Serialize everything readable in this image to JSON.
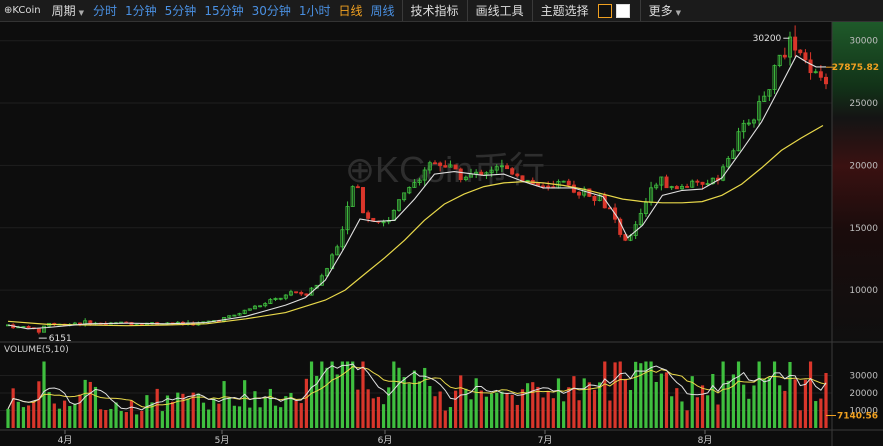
{
  "toolbar": {
    "logo": "⊕KCoin",
    "period_label": "周期",
    "timeframes": [
      {
        "label": "分时",
        "active": false
      },
      {
        "label": "1分钟",
        "active": false
      },
      {
        "label": "5分钟",
        "active": false
      },
      {
        "label": "15分钟",
        "active": false
      },
      {
        "label": "30分钟",
        "active": false
      },
      {
        "label": "1小时",
        "active": false
      },
      {
        "label": "日线",
        "active": true
      },
      {
        "label": "周线",
        "active": false
      }
    ],
    "indicators_label": "技术指标",
    "drawing_tools_label": "画线工具",
    "theme_label": "主题选择",
    "more_label": "更多"
  },
  "watermark": "⊕KCoin币行",
  "colors": {
    "up": "#3fbf3f",
    "down": "#d9362b",
    "ma_short": "#e0e0e0",
    "ma_long": "#e8d84a",
    "accent": "#f0a020",
    "link": "#4a90e2"
  },
  "chart_data": {
    "type": "candlestick",
    "months": [
      "4月",
      "5月",
      "6月",
      "7月",
      "8月"
    ],
    "y_ticks": [
      10000,
      15000,
      20000,
      25000,
      30000
    ],
    "ylim": [
      6000,
      31500
    ],
    "price_ranges": [
      [
        0,
        7200
      ],
      [
        10,
        7000
      ],
      [
        20,
        7100
      ],
      [
        30,
        6600
      ],
      [
        40,
        7400
      ],
      [
        50,
        7200
      ],
      [
        60,
        7300
      ],
      [
        70,
        7400
      ],
      [
        80,
        7350
      ],
      [
        90,
        7300
      ],
      [
        100,
        7300
      ],
      [
        110,
        7350
      ],
      [
        120,
        7400
      ],
      [
        130,
        7300
      ],
      [
        140,
        7350
      ],
      [
        150,
        7300
      ],
      [
        160,
        7400
      ],
      [
        170,
        7300
      ],
      [
        180,
        7350
      ],
      [
        190,
        7300
      ],
      [
        200,
        7400
      ],
      [
        210,
        7600
      ],
      [
        220,
        7800
      ],
      [
        230,
        8000
      ],
      [
        240,
        8400
      ],
      [
        250,
        8700
      ],
      [
        260,
        8900
      ],
      [
        270,
        9300
      ],
      [
        280,
        9500
      ],
      [
        290,
        9800
      ],
      [
        300,
        9600
      ],
      [
        310,
        10300
      ],
      [
        320,
        11500
      ],
      [
        330,
        13300
      ],
      [
        340,
        15300
      ],
      [
        350,
        19300
      ],
      [
        355,
        17000
      ],
      [
        360,
        15800
      ],
      [
        370,
        15600
      ],
      [
        380,
        15300
      ],
      [
        390,
        16500
      ],
      [
        400,
        18000
      ],
      [
        410,
        18500
      ],
      [
        420,
        19700
      ],
      [
        430,
        20500
      ],
      [
        440,
        20000
      ],
      [
        450,
        19500
      ],
      [
        460,
        19000
      ],
      [
        470,
        19200
      ],
      [
        480,
        19500
      ],
      [
        490,
        19800
      ],
      [
        500,
        19700
      ],
      [
        510,
        19500
      ],
      [
        520,
        19000
      ],
      [
        530,
        18500
      ],
      [
        540,
        18200
      ],
      [
        550,
        18000
      ],
      [
        560,
        18400
      ],
      [
        570,
        18200
      ],
      [
        580,
        17900
      ],
      [
        590,
        17600
      ],
      [
        600,
        17200
      ],
      [
        610,
        16000
      ],
      [
        620,
        13700
      ],
      [
        630,
        14500
      ],
      [
        640,
        16500
      ],
      [
        650,
        18600
      ],
      [
        660,
        18700
      ],
      [
        670,
        18000
      ],
      [
        680,
        18300
      ],
      [
        690,
        18500
      ],
      [
        700,
        18300
      ],
      [
        710,
        19000
      ],
      [
        720,
        19600
      ],
      [
        730,
        21000
      ],
      [
        740,
        22800
      ],
      [
        750,
        23700
      ],
      [
        760,
        25000
      ],
      [
        770,
        27000
      ],
      [
        780,
        29200
      ],
      [
        790,
        29800
      ],
      [
        800,
        28700
      ],
      [
        810,
        27700
      ],
      [
        820,
        27000
      ]
    ],
    "ma_short": [
      [
        0,
        7200
      ],
      [
        20,
        6900
      ],
      [
        40,
        7000
      ],
      [
        80,
        7300
      ],
      [
        120,
        7350
      ],
      [
        160,
        7300
      ],
      [
        200,
        7400
      ],
      [
        240,
        7900
      ],
      [
        280,
        8800
      ],
      [
        300,
        9400
      ],
      [
        320,
        10800
      ],
      [
        340,
        13500
      ],
      [
        355,
        15700
      ],
      [
        370,
        15500
      ],
      [
        390,
        15600
      ],
      [
        410,
        17300
      ],
      [
        430,
        19300
      ],
      [
        450,
        19500
      ],
      [
        480,
        19200
      ],
      [
        500,
        19300
      ],
      [
        520,
        18700
      ],
      [
        540,
        18200
      ],
      [
        570,
        18200
      ],
      [
        600,
        17500
      ],
      [
        615,
        15800
      ],
      [
        625,
        14200
      ],
      [
        640,
        15200
      ],
      [
        660,
        17600
      ],
      [
        680,
        18000
      ],
      [
        700,
        18100
      ],
      [
        720,
        19000
      ],
      [
        740,
        21200
      ],
      [
        760,
        23500
      ],
      [
        780,
        26500
      ],
      [
        795,
        28800
      ],
      [
        805,
        28300
      ],
      [
        815,
        27900
      ],
      [
        825,
        27900
      ]
    ],
    "ma_long": [
      [
        0,
        7500
      ],
      [
        40,
        7250
      ],
      [
        80,
        7200
      ],
      [
        120,
        7150
      ],
      [
        160,
        7200
      ],
      [
        200,
        7300
      ],
      [
        240,
        7700
      ],
      [
        280,
        8200
      ],
      [
        320,
        9200
      ],
      [
        340,
        10000
      ],
      [
        360,
        11300
      ],
      [
        380,
        12600
      ],
      [
        400,
        14000
      ],
      [
        420,
        15600
      ],
      [
        440,
        16900
      ],
      [
        460,
        17700
      ],
      [
        480,
        18300
      ],
      [
        500,
        18600
      ],
      [
        520,
        18700
      ],
      [
        540,
        18600
      ],
      [
        560,
        18400
      ],
      [
        580,
        18100
      ],
      [
        600,
        17700
      ],
      [
        620,
        17300
      ],
      [
        640,
        17100
      ],
      [
        660,
        17000
      ],
      [
        680,
        17000
      ],
      [
        700,
        17100
      ],
      [
        720,
        17600
      ],
      [
        740,
        18500
      ],
      [
        760,
        19800
      ],
      [
        780,
        21200
      ],
      [
        800,
        22200
      ],
      [
        822,
        23200
      ]
    ],
    "annotations": [
      {
        "label": "30200",
        "price": 30200,
        "x": 790
      },
      {
        "label": "6151",
        "price": 6151,
        "x": 25
      }
    ],
    "last_price_label": "27875.82",
    "last_price": 27875.82,
    "volume": {
      "label": "VOLUME(5,10)",
      "y_ticks": [
        10000,
        20000,
        30000
      ],
      "ylim": [
        0,
        40000
      ],
      "last_label": "7140.56",
      "last_value": 7140.56
    }
  }
}
